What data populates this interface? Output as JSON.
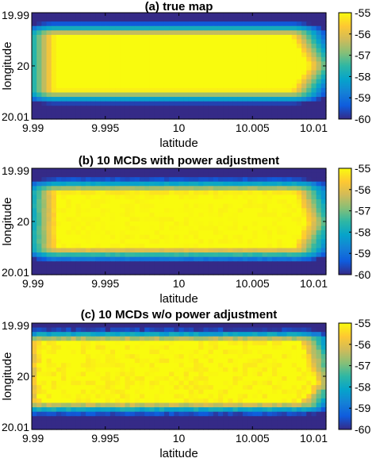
{
  "chart_data": [
    {
      "type": "heatmap",
      "title": "(a) true map",
      "xlabel": "latitude",
      "ylabel": "longitude",
      "x_ticks": [
        "9.99",
        "9.995",
        "10",
        "10.005",
        "10.01"
      ],
      "y_ticks": [
        "19.99",
        "20",
        "20.01"
      ],
      "xlim": [
        9.99,
        10.01
      ],
      "ylim": [
        19.99,
        20.01
      ],
      "y_direction": "reverse",
      "colorbar": {
        "ticks": [
          "-55",
          "-56",
          "-57",
          "-58",
          "-59",
          "-60"
        ],
        "range": [
          -60,
          -55
        ],
        "colormap": "parula"
      },
      "plateau": {
        "value": -55,
        "x_left": 9.9916,
        "x_right": 10.0076,
        "x_left_mid": 9.9916,
        "x_right_mid": 10.0088,
        "y_top": 19.9945,
        "y_bottom": 20.0045,
        "y_mid": 20.0
      },
      "falloff_per_unit": 0.00055,
      "noise": 0.0
    },
    {
      "type": "heatmap",
      "title": "(b) 10 MCDs with power adjustment",
      "xlabel": "latitude",
      "ylabel": "longitude",
      "x_ticks": [
        "9.99",
        "9.995",
        "10",
        "10.005",
        "10.01"
      ],
      "y_ticks": [
        "19.99",
        "20",
        "20.01"
      ],
      "xlim": [
        9.99,
        10.01
      ],
      "ylim": [
        19.99,
        20.01
      ],
      "y_direction": "reverse",
      "colorbar": {
        "ticks": [
          "-55",
          "-56",
          "-57",
          "-58",
          "-59",
          "-60"
        ],
        "range": [
          -60,
          -55
        ],
        "colormap": "parula"
      },
      "plateau": {
        "value": -55,
        "x_left": 9.9918,
        "x_right": 10.0078,
        "x_left_mid": 9.9918,
        "x_right_mid": 10.0086,
        "y_top": 19.9947,
        "y_bottom": 20.0048,
        "y_mid": 20.0
      },
      "falloff_per_unit": 0.00058,
      "noise": 0.25
    },
    {
      "type": "heatmap",
      "title": "(c) 10 MCDs w/o power adjustment",
      "xlabel": "latitude",
      "ylabel": "longitude",
      "x_ticks": [
        "9.99",
        "9.995",
        "10",
        "10.005",
        "10.01"
      ],
      "y_ticks": [
        "19.99",
        "20",
        "20.01"
      ],
      "xlim": [
        9.99,
        10.01
      ],
      "ylim": [
        19.99,
        20.01
      ],
      "y_direction": "reverse",
      "colorbar": {
        "ticks": [
          "-55",
          "-56",
          "-57",
          "-58",
          "-59",
          "-60"
        ],
        "range": [
          -60,
          -55
        ],
        "colormap": "parula"
      },
      "plateau": {
        "value": -55,
        "x_left": 9.9906,
        "x_right": 10.0082,
        "x_left_mid": 9.9906,
        "x_right_mid": 10.0092,
        "y_top": 19.9937,
        "y_bottom": 20.0047,
        "y_mid": 20.0012
      },
      "falloff_per_unit": 0.00052,
      "noise": 0.55
    }
  ],
  "colors": {
    "parula": [
      "#352a87",
      "#0f5cdd",
      "#1481d6",
      "#06a4ca",
      "#2eb7a4",
      "#87bf77",
      "#d1bb59",
      "#fec832",
      "#f9fb0e"
    ]
  }
}
